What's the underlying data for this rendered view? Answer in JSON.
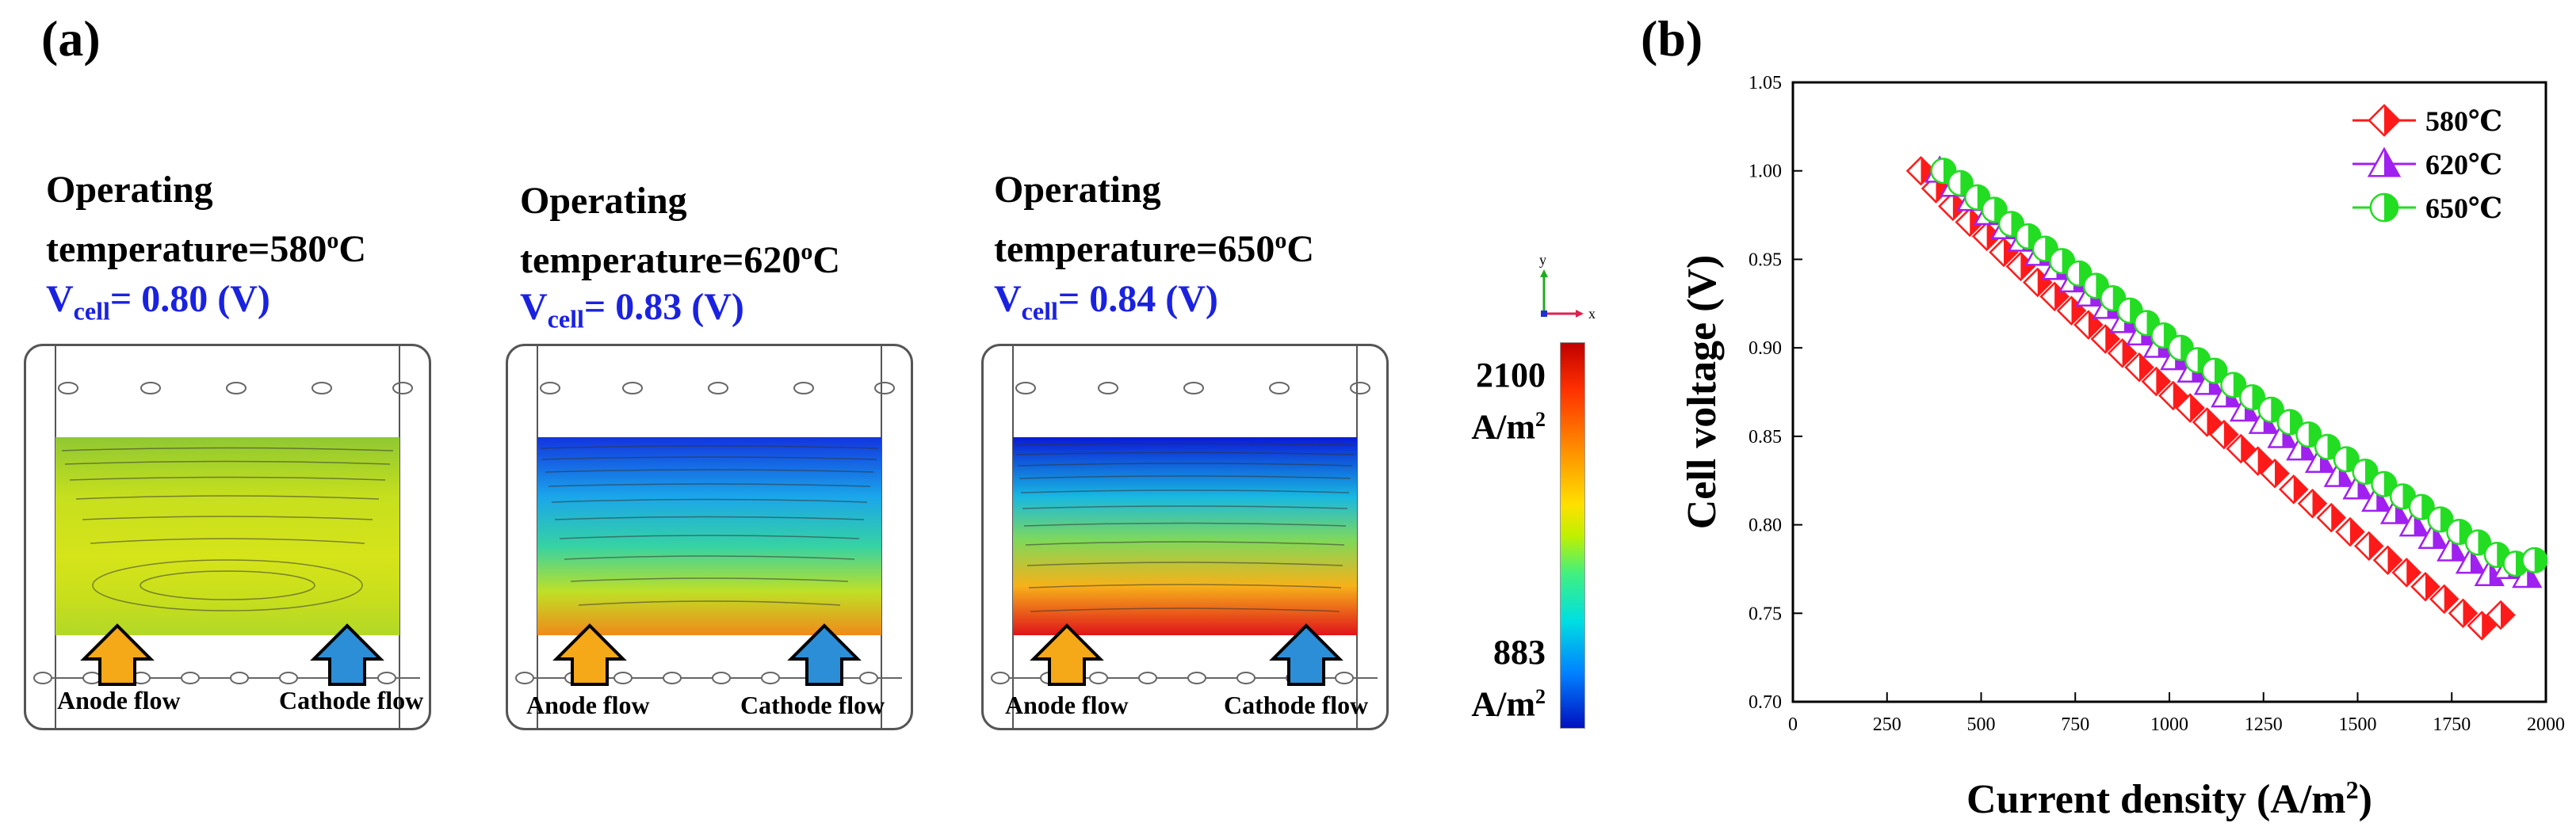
{
  "panel_a": {
    "label": "(a)",
    "simulations": [
      {
        "title_line1": "Operating",
        "title_line2_prefix": "temperature=580",
        "title_sup": "o",
        "title_unit": "C",
        "vcell_prefix": "V",
        "vcell_sub": "cell",
        "vcell_value": "= 0.80 (V)",
        "anode_label": "Anode flow",
        "cathode_label": "Cathode flow",
        "field_colors": [
          "#90c832",
          "#c6df1e",
          "#d6e41a",
          "#c9df1c",
          "#b3d827"
        ]
      },
      {
        "title_line1": "Operating",
        "title_line2_prefix": "temperature=620",
        "title_sup": "o",
        "title_unit": "C",
        "vcell_prefix": "V",
        "vcell_sub": "cell",
        "vcell_value": "= 0.83 (V)",
        "anode_label": "Anode flow",
        "cathode_label": "Cathode flow",
        "field_colors": [
          "#1234e0",
          "#1aa6ea",
          "#36d2a4",
          "#bfe026",
          "#f08a1a"
        ]
      },
      {
        "title_line1": "Operating",
        "title_line2_prefix": "temperature=650",
        "title_sup": "o",
        "title_unit": "C",
        "vcell_prefix": "V",
        "vcell_sub": "cell",
        "vcell_value": "= 0.84 (V)",
        "anode_label": "Anode flow",
        "cathode_label": "Cathode flow",
        "field_colors": [
          "#0a1ad8",
          "#18b8e2",
          "#7fd85a",
          "#f6b21a",
          "#e0141a"
        ]
      }
    ],
    "colorbar": {
      "max_value": "2100",
      "max_unit": "A/m",
      "min_value": "883",
      "min_unit": "A/m",
      "unit_sup": "2"
    },
    "axes_triad": {
      "y": "y",
      "x": "x"
    },
    "colors": {
      "anode_arrow": "#f5a818",
      "cathode_arrow": "#2c8ed6"
    }
  },
  "panel_b": {
    "label": "(b)"
  },
  "chart_data": {
    "type": "scatter",
    "title": "",
    "xlabel": "Current density (A/m",
    "xlabel_sup": "2",
    "xlabel_end": ")",
    "ylabel": "Cell voltage (V)",
    "xlim": [
      0,
      2000
    ],
    "ylim": [
      0.7,
      1.05
    ],
    "xticks": [
      "0",
      "250",
      "500",
      "750",
      "1000",
      "1250",
      "1500",
      "1750",
      "2000"
    ],
    "yticks": [
      "0.70",
      "0.75",
      "0.80",
      "0.85",
      "0.90",
      "0.95",
      "1.00",
      "1.05"
    ],
    "grid": false,
    "legend_position": "top-right",
    "series": [
      {
        "name": "580℃",
        "marker": "diamond",
        "color": "#ff1a1a",
        "x": [
          340,
          380,
          425,
          470,
          515,
          560,
          605,
          650,
          695,
          740,
          785,
          830,
          875,
          920,
          965,
          1010,
          1055,
          1100,
          1145,
          1190,
          1235,
          1280,
          1330,
          1380,
          1430,
          1480,
          1530,
          1580,
          1630,
          1680,
          1730,
          1780,
          1830,
          1880
        ],
        "y": [
          1.0,
          0.99,
          0.98,
          0.971,
          0.963,
          0.954,
          0.946,
          0.937,
          0.929,
          0.921,
          0.913,
          0.905,
          0.897,
          0.889,
          0.881,
          0.873,
          0.866,
          0.858,
          0.851,
          0.843,
          0.836,
          0.829,
          0.82,
          0.812,
          0.804,
          0.796,
          0.788,
          0.78,
          0.773,
          0.765,
          0.758,
          0.75,
          0.743,
          0.749
        ]
      },
      {
        "name": "620℃",
        "marker": "triangle",
        "color": "#a020f0",
        "x": [
          390,
          430,
          475,
          520,
          565,
          610,
          655,
          700,
          745,
          790,
          835,
          880,
          925,
          970,
          1015,
          1060,
          1105,
          1150,
          1200,
          1250,
          1300,
          1350,
          1400,
          1450,
          1500,
          1550,
          1600,
          1650,
          1700,
          1750,
          1800,
          1850,
          1900,
          1950
        ],
        "y": [
          1.0,
          0.992,
          0.984,
          0.976,
          0.968,
          0.961,
          0.953,
          0.945,
          0.938,
          0.93,
          0.923,
          0.915,
          0.908,
          0.901,
          0.894,
          0.887,
          0.88,
          0.873,
          0.865,
          0.858,
          0.85,
          0.843,
          0.836,
          0.828,
          0.821,
          0.814,
          0.807,
          0.8,
          0.793,
          0.786,
          0.779,
          0.772,
          0.776,
          0.771
        ]
      },
      {
        "name": "650℃",
        "marker": "circle",
        "color": "#22dd22",
        "x": [
          400,
          445,
          490,
          535,
          580,
          625,
          670,
          715,
          760,
          805,
          850,
          895,
          940,
          985,
          1030,
          1075,
          1120,
          1170,
          1220,
          1270,
          1320,
          1370,
          1420,
          1470,
          1520,
          1570,
          1620,
          1670,
          1720,
          1770,
          1820,
          1870,
          1920,
          1970
        ],
        "y": [
          1.0,
          0.993,
          0.985,
          0.978,
          0.97,
          0.963,
          0.956,
          0.949,
          0.942,
          0.935,
          0.928,
          0.921,
          0.914,
          0.907,
          0.9,
          0.893,
          0.887,
          0.879,
          0.872,
          0.865,
          0.858,
          0.851,
          0.844,
          0.837,
          0.83,
          0.823,
          0.816,
          0.81,
          0.803,
          0.796,
          0.79,
          0.783,
          0.778,
          0.78
        ]
      }
    ]
  }
}
